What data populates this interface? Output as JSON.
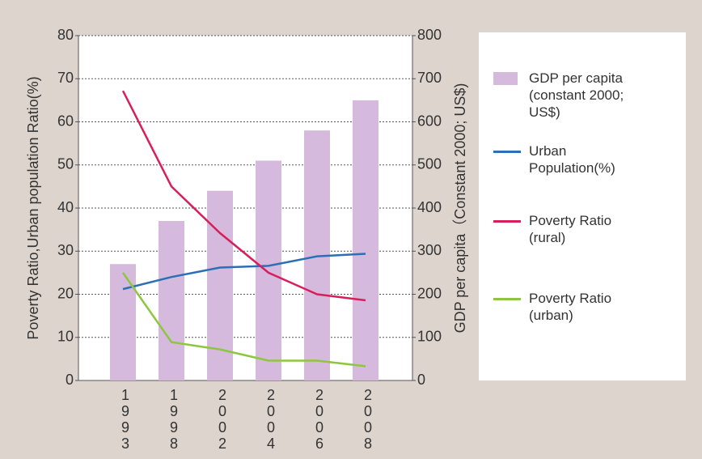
{
  "chart_data": {
    "type": "bar",
    "categories": [
      "1993",
      "1998",
      "2002",
      "2004",
      "2006",
      "2008"
    ],
    "series": [
      {
        "name": "GDP per capita (constant 2000; US$)",
        "type": "bar",
        "axis": "y2",
        "color": "#d6bade",
        "values": [
          270,
          370,
          440,
          510,
          580,
          650
        ]
      },
      {
        "name": "Urban Population(%)",
        "type": "line",
        "color": "#2b70b6",
        "values": [
          21.2,
          24,
          26.2,
          26.6,
          28.8,
          29.4
        ]
      },
      {
        "name": "Poverty Ratio (rural)",
        "type": "line",
        "color": "#d6205c",
        "values": [
          67.2,
          45,
          34.2,
          25,
          20,
          18.6
        ]
      },
      {
        "name": "Poverty Ratio (urban)",
        "type": "line",
        "color": "#8dc63f",
        "values": [
          25,
          8.9,
          7.2,
          4.6,
          4.6,
          3.3
        ]
      }
    ],
    "ylabel": "Poverty Ratio,Urban population Ratio(%)",
    "y2label": "GDP per capita（Constant 2000; US$)",
    "ylim": [
      0,
      80
    ],
    "yticks": [
      0,
      10,
      20,
      30,
      40,
      50,
      60,
      70,
      80
    ],
    "y2lim": [
      0,
      800
    ],
    "y2ticks": [
      0,
      100,
      200,
      300,
      400,
      500,
      600,
      700,
      800
    ],
    "grid": true,
    "legend": "right"
  }
}
